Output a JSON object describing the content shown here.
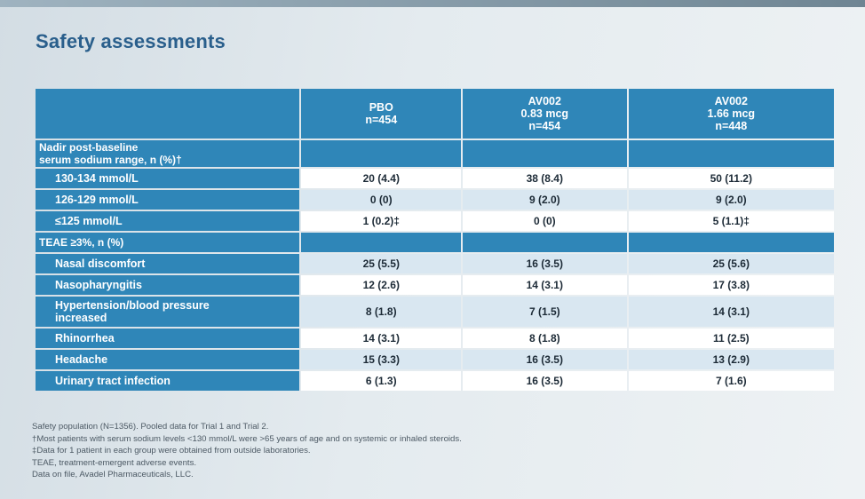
{
  "title": "Safety assessments",
  "columns": [
    {
      "line1": "",
      "line2": "PBO",
      "line3": "n=454"
    },
    {
      "line1": "AV002",
      "line2": "0.83 mcg",
      "line3": "n=454"
    },
    {
      "line1": "AV002",
      "line2": "1.66 mcg",
      "line3": "n=448"
    }
  ],
  "section1": {
    "label_line1": "Nadir post-baseline",
    "label_line2": "serum sodium range, n (%)†",
    "rows": [
      {
        "label": "130-134 mmol/L",
        "values": [
          "20 (4.4)",
          "38 (8.4)",
          "50 (11.2)"
        ]
      },
      {
        "label": "126-129 mmol/L",
        "values": [
          "0 (0)",
          "9 (2.0)",
          "9 (2.0)"
        ]
      },
      {
        "label": "≤125 mmol/L",
        "values": [
          "1 (0.2)‡",
          "0 (0)",
          "5 (1.1)‡"
        ]
      }
    ]
  },
  "section2": {
    "label": "TEAE ≥3%, n (%)",
    "rows": [
      {
        "label": "Nasal discomfort",
        "values": [
          "25 (5.5)",
          "16 (3.5)",
          "25 (5.6)"
        ]
      },
      {
        "label": "Nasopharyngitis",
        "values": [
          "12 (2.6)",
          "14 (3.1)",
          "17 (3.8)"
        ]
      },
      {
        "label_line1": "Hypertension/blood pressure",
        "label_line2": "increased",
        "values": [
          "8 (1.8)",
          "7 (1.5)",
          "14 (3.1)"
        ]
      },
      {
        "label": "Rhinorrhea",
        "values": [
          "14 (3.1)",
          "8 (1.8)",
          "11 (2.5)"
        ]
      },
      {
        "label": "Headache",
        "values": [
          "15 (3.3)",
          "16 (3.5)",
          "13 (2.9)"
        ]
      },
      {
        "label": "Urinary tract infection",
        "values": [
          "6 (1.3)",
          "16 (3.5)",
          "7 (1.6)"
        ]
      }
    ]
  },
  "footnotes": [
    "Safety population (N=1356). Pooled data for Trial 1 and Trial 2.",
    "†Most patients with serum sodium levels <130 mmol/L were >65 years of age and on systemic or inhaled steroids.",
    "‡Data for 1 patient in each group were obtained from outside laboratories.",
    "TEAE, treatment-emergent adverse events.",
    "Data on file, Avadel Pharmaceuticals, LLC."
  ]
}
